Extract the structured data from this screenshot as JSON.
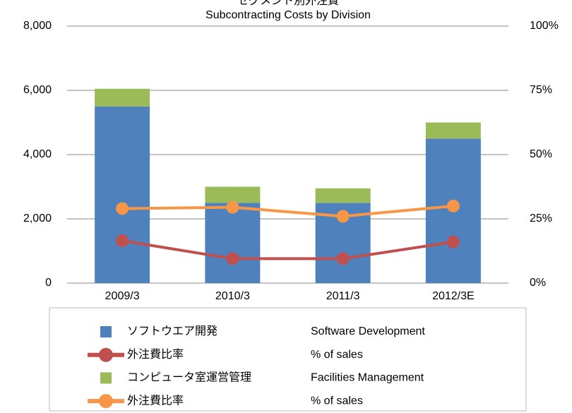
{
  "chart_data": {
    "type": "bar",
    "title": "セグメント別外注費",
    "subtitle": "Subcontracting Costs by Division",
    "categories": [
      "2009/3",
      "2010/3",
      "2011/3",
      "2012/3E"
    ],
    "series": [
      {
        "name": "ソフトウエア開発",
        "name_en": "Software Development",
        "type": "bar",
        "color": "#4f81bd",
        "values": [
          5500,
          2500,
          2500,
          4500
        ]
      },
      {
        "name": "外注費比率",
        "name_en": "% of sales",
        "type": "line",
        "axis": "y2",
        "color": "#c0504d",
        "values": [
          16.5,
          9.5,
          9.5,
          16
        ]
      },
      {
        "name": "コンピュータ室運営管理",
        "name_en": "Facilities Management",
        "type": "bar",
        "color": "#9bbb59",
        "values": [
          550,
          500,
          450,
          500
        ]
      },
      {
        "name": "外注費比率",
        "name_en": "% of sales",
        "type": "line",
        "axis": "y2",
        "color": "#f79646",
        "values": [
          29,
          29.5,
          26,
          30
        ]
      }
    ],
    "stacked": true,
    "ylim": [
      0,
      8000
    ],
    "yticks": [
      0,
      {
        "value": 2000,
        "label": "2,000"
      },
      {
        "value": 4000,
        "label": "4,000"
      },
      {
        "value": 6000,
        "label": "6,000"
      },
      {
        "value": 8000,
        "label": "8,000"
      }
    ],
    "y2lim": [
      0,
      100
    ],
    "y2ticks": [
      {
        "value": 0,
        "label": "0%"
      },
      {
        "value": 25,
        "label": "25%"
      },
      {
        "value": 50,
        "label": "50%"
      },
      {
        "value": 75,
        "label": "75%"
      },
      {
        "value": 100,
        "label": "100%"
      }
    ],
    "grid": true,
    "legend": "bottom"
  }
}
